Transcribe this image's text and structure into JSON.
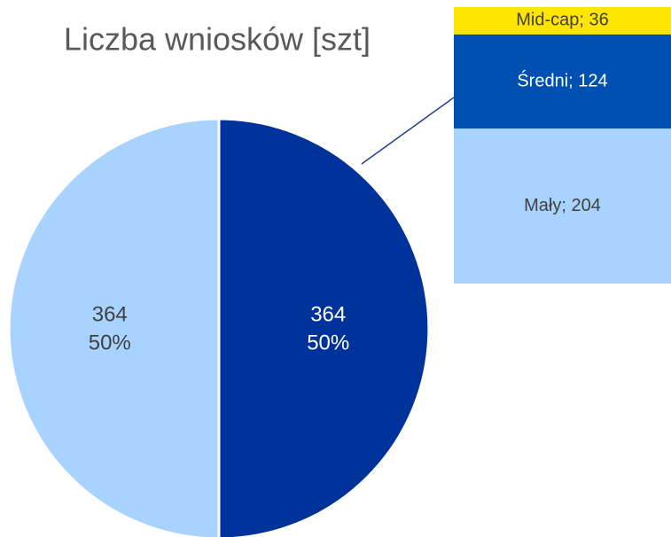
{
  "chart_data": {
    "type": "pie",
    "title": "Liczba wniosków [szt]",
    "values": [
      364,
      364
    ],
    "percent_labels": [
      "50%",
      "50%"
    ],
    "colors": [
      "#00329b",
      "#a8d3ff"
    ],
    "breakdown": {
      "labels": [
        "Mid-cap; 36",
        "Średni; 124",
        "Mały; 204"
      ],
      "values": [
        36,
        124,
        204
      ],
      "colors": [
        "#ffe600",
        "#0050b3",
        "#a8d3ff"
      ]
    }
  }
}
